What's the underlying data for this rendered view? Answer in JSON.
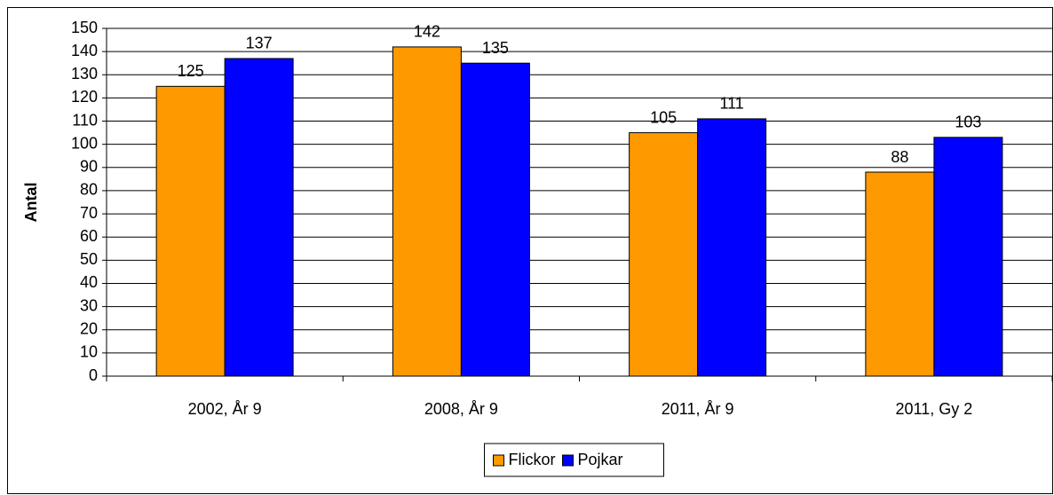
{
  "chart_data": {
    "type": "bar",
    "y_label": "Antal",
    "categories": [
      "2002, År 9",
      "2008, År 9",
      "2011, År 9",
      "2011, Gy 2"
    ],
    "series": [
      {
        "name": "Flickor",
        "color": "#ff9900",
        "values": [
          125,
          142,
          105,
          88
        ]
      },
      {
        "name": "Pojkar",
        "color": "#0000ff",
        "values": [
          137,
          135,
          111,
          103
        ]
      }
    ],
    "ylim": [
      0,
      150
    ],
    "yticks": [
      0,
      10,
      20,
      30,
      40,
      50,
      60,
      70,
      80,
      90,
      100,
      110,
      120,
      130,
      140,
      150
    ],
    "grid": true,
    "legend": "bottom"
  }
}
